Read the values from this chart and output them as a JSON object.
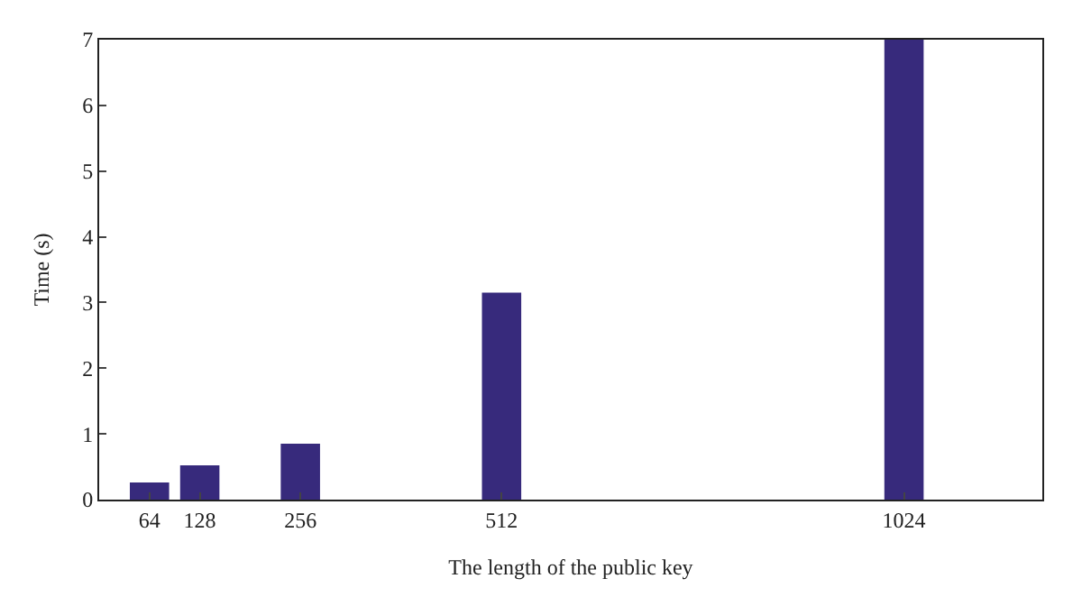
{
  "chart_data": {
    "type": "bar",
    "xlabel": "The length of the public key",
    "ylabel": "Time (s)",
    "x": [
      64,
      128,
      256,
      512,
      1024
    ],
    "values": [
      0.26,
      0.52,
      0.85,
      3.15,
      7.0
    ],
    "color": "#372a7c",
    "xlim": [
      0,
      1200
    ],
    "xticks": [
      64,
      128,
      256,
      512,
      1024
    ],
    "ylim": [
      0,
      7
    ],
    "yticks": [
      0,
      1,
      2,
      3,
      4,
      5,
      6,
      7
    ]
  }
}
